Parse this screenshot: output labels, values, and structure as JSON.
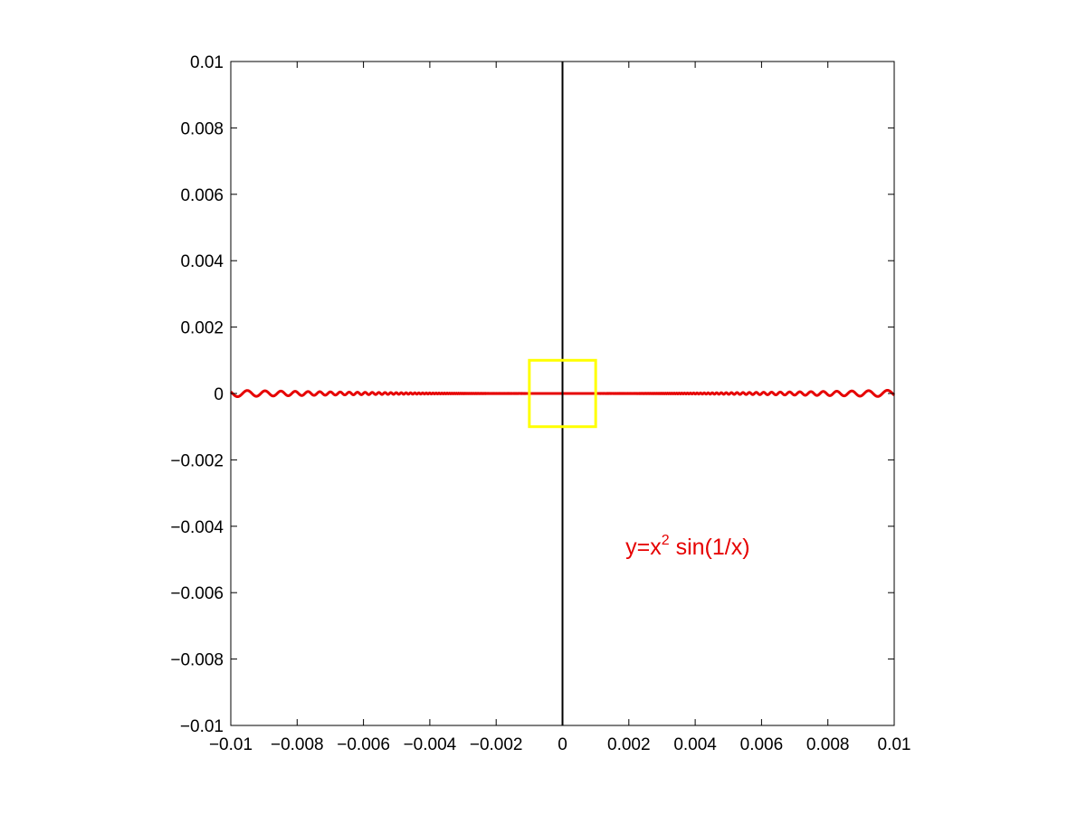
{
  "chart_data": {
    "type": "line",
    "title": "",
    "xlabel": "",
    "ylabel": "",
    "xlim": [
      -0.01,
      0.01
    ],
    "ylim": [
      -0.01,
      0.01
    ],
    "grid": false,
    "x_ticks": [
      -0.01,
      -0.008,
      -0.006,
      -0.004,
      -0.002,
      0,
      0.002,
      0.004,
      0.006,
      0.008,
      0.01
    ],
    "x_tick_labels": [
      "−0.01",
      "−0.008",
      "−0.006",
      "−0.004",
      "−0.002",
      "0",
      "0.002",
      "0.004",
      "0.006",
      "0.008",
      "0.01"
    ],
    "y_ticks": [
      0.01,
      0.008,
      0.006,
      0.004,
      0.002,
      0,
      -0.002,
      -0.004,
      -0.006,
      -0.008,
      -0.01
    ],
    "y_tick_labels": [
      "0.01",
      "0.008",
      "0.006",
      "0.004",
      "0.002",
      "0",
      "−0.002",
      "−0.004",
      "−0.006",
      "−0.008",
      "−0.01"
    ],
    "series": [
      {
        "function": "y = x^2 sin(1/x)",
        "x_range": [
          -0.01,
          0.01
        ],
        "color": "#e60000"
      }
    ],
    "vertical_line": {
      "x": 0,
      "color": "#000000"
    },
    "highlight_box": {
      "x": [
        -0.001,
        0.001
      ],
      "y": [
        -0.001,
        0.001
      ],
      "color": "#ffff00"
    },
    "annotation": {
      "base": "y=x",
      "superscript": "2",
      "tail": " sin(1/x)",
      "x": 0.0019,
      "y": -0.0046,
      "color": "#e60000"
    }
  }
}
